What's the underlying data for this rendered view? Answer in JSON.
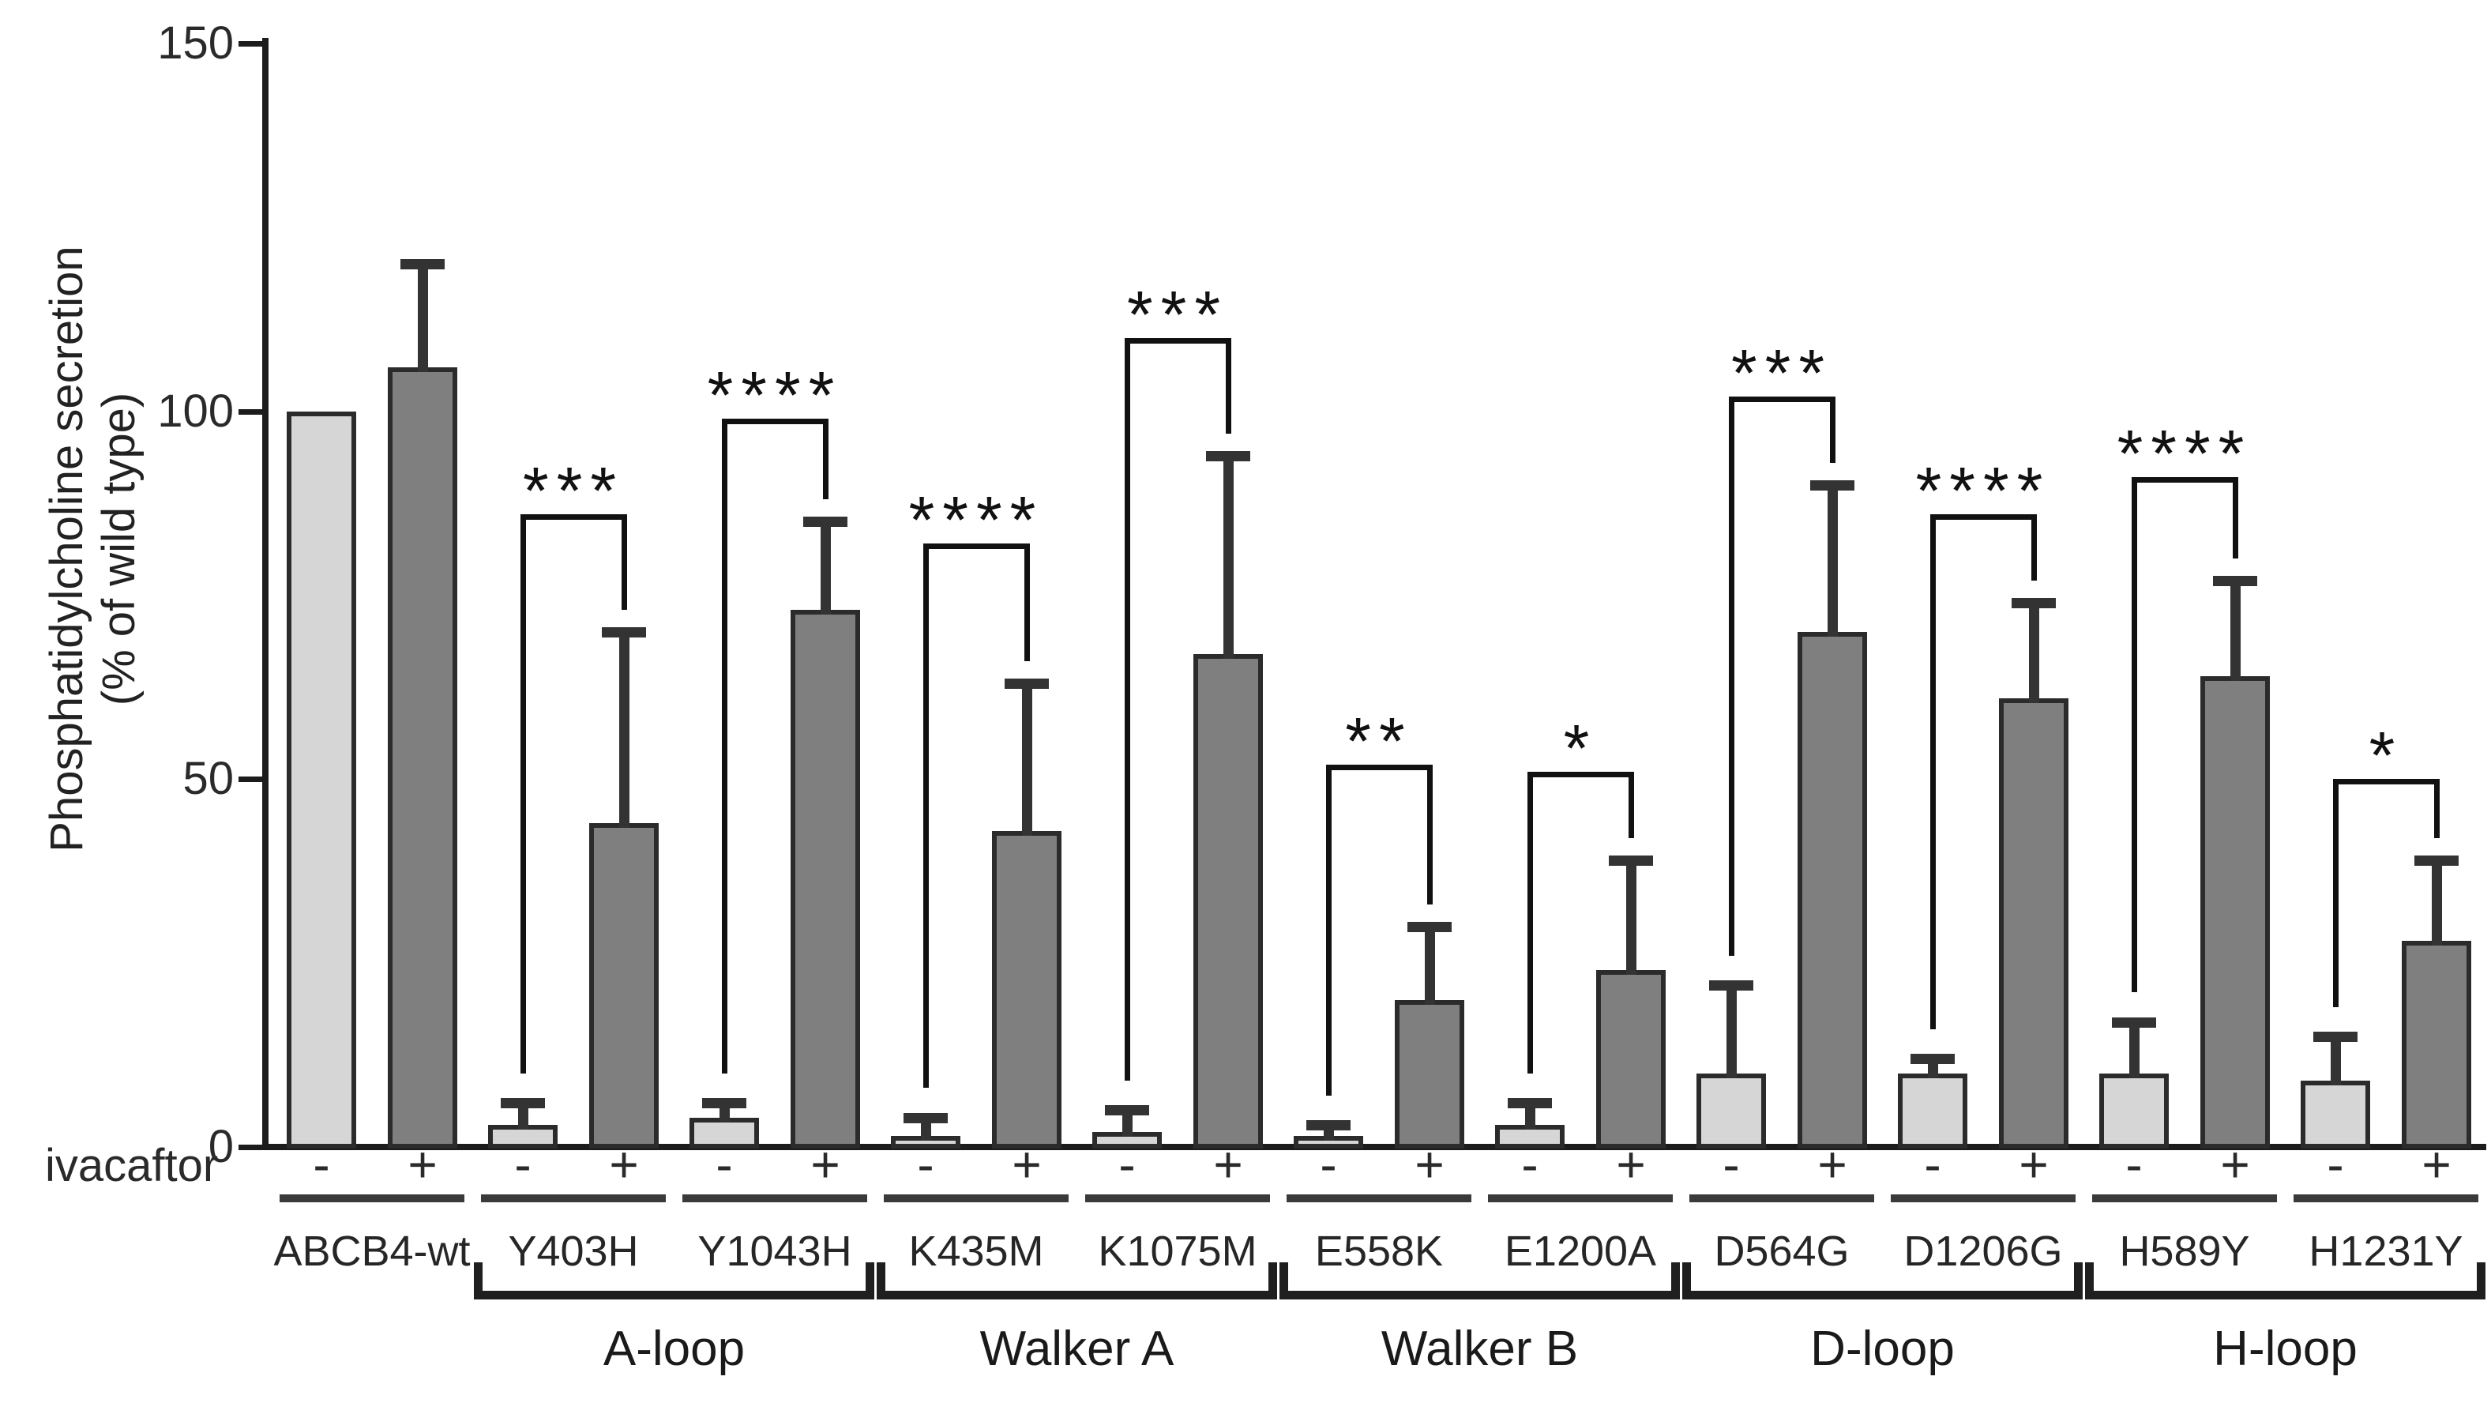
{
  "figure": {
    "y_axis": {
      "title_line1": "Phosphatidylcholine secretion",
      "title_line2": "(% of wild type)"
    },
    "x_axis": {
      "treatment_label": "ivacaftor",
      "minus_symbol": "-",
      "plus_symbol": "+"
    },
    "colors": {
      "bar_minus_fill": "#d6d6d6",
      "bar_plus_fill": "#7f7f7f",
      "bar_border": "#2b2b2b",
      "axis": "#1c1c1c",
      "error_bar": "#333333"
    }
  },
  "chart_data": {
    "type": "bar",
    "title": "",
    "xlabel": "",
    "ylabel": "Phosphatidylcholine secretion (% of wild type)",
    "ylim": [
      0,
      150
    ],
    "yticks": [
      0,
      50,
      100,
      150
    ],
    "grid": false,
    "legend": "none",
    "categories": [
      "ABCB4-wt",
      "Y403H",
      "Y1043H",
      "K435M",
      "K1075M",
      "E558K",
      "E1200A",
      "D564G",
      "D1206G",
      "H589Y",
      "H1231Y"
    ],
    "series": [
      {
        "name": "ivacaftor -",
        "color": "#d6d6d6",
        "values": [
          100,
          3,
          4,
          1.5,
          2,
          1.5,
          3,
          10,
          10,
          10,
          9
        ],
        "errors_plus": [
          0,
          3,
          2,
          2.5,
          3,
          1.5,
          3,
          12,
          2,
          7,
          6
        ]
      },
      {
        "name": "ivacaftor +",
        "color": "#7f7f7f",
        "values": [
          106,
          44,
          73,
          43,
          67,
          20,
          24,
          70,
          61,
          64,
          28
        ],
        "errors_plus": [
          14,
          26,
          12,
          20,
          27,
          10,
          15,
          20,
          13,
          13,
          11
        ]
      }
    ],
    "significance": [
      {
        "category": "Y403H",
        "stars": "***",
        "height": 86
      },
      {
        "category": "Y1043H",
        "stars": "****",
        "height": 99
      },
      {
        "category": "K435M",
        "stars": "****",
        "height": 82
      },
      {
        "category": "K1075M",
        "stars": "***",
        "height": 110
      },
      {
        "category": "E558K",
        "stars": "**",
        "height": 52
      },
      {
        "category": "E1200A",
        "stars": "*",
        "height": 51
      },
      {
        "category": "D564G",
        "stars": "***",
        "height": 102
      },
      {
        "category": "D1206G",
        "stars": "****",
        "height": 86
      },
      {
        "category": "H589Y",
        "stars": "****",
        "height": 91
      },
      {
        "category": "H1231Y",
        "stars": "*",
        "height": 50
      }
    ],
    "groups": [
      {
        "label": "A-loop",
        "categories": [
          "Y403H",
          "Y1043H"
        ]
      },
      {
        "label": "Walker A",
        "categories": [
          "K435M",
          "K1075M"
        ]
      },
      {
        "label": "Walker B",
        "categories": [
          "E558K",
          "E1200A"
        ]
      },
      {
        "label": "D-loop",
        "categories": [
          "D564G",
          "D1206G"
        ]
      },
      {
        "label": "H-loop",
        "categories": [
          "H589Y",
          "H1231Y"
        ]
      }
    ]
  }
}
